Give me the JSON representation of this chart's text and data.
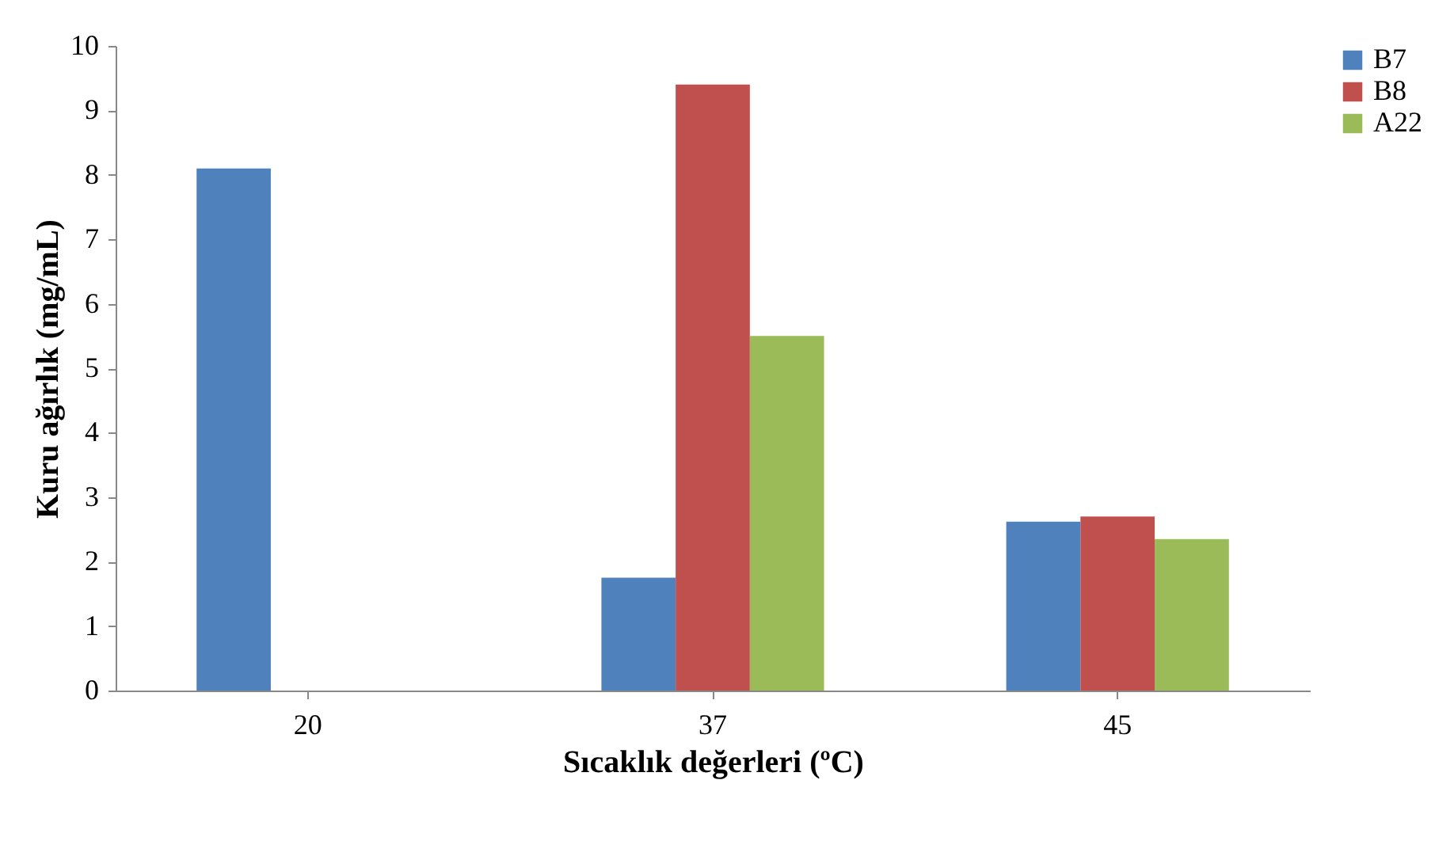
{
  "chart_data": {
    "type": "bar",
    "xlabel": "Sıcaklık değerleri (ºC)",
    "ylabel": "Kuru ağırlık  (mg/mL)",
    "categories": [
      "20",
      "37",
      "45"
    ],
    "series": [
      {
        "name": "B7",
        "color": "#4f81bd",
        "values": [
          8.1,
          1.75,
          2.62
        ]
      },
      {
        "name": "B8",
        "color": "#c0504d",
        "values": [
          0,
          9.4,
          2.7
        ]
      },
      {
        "name": "A22",
        "color": "#9bbb59",
        "values": [
          0,
          5.5,
          2.35
        ]
      }
    ],
    "ylim": [
      0,
      10
    ],
    "yticks": [
      0,
      1,
      2,
      3,
      4,
      5,
      6,
      7,
      8,
      9,
      10
    ],
    "grid": false,
    "legend": "right"
  }
}
